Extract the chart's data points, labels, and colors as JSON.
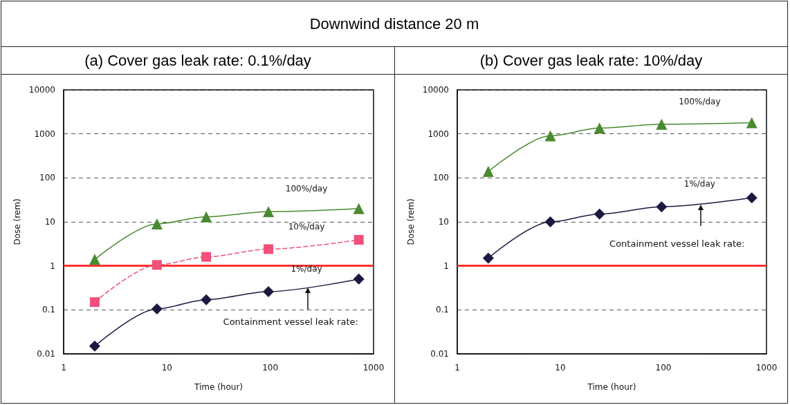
{
  "chart_data": [
    {
      "type": "line",
      "title": "Downwind distance 20 m",
      "subtitle": "(a) Cover gas leak rate: 0.1%/day",
      "xlabel": "Time (hour)",
      "ylabel": "Dose (rem)",
      "x": [
        2,
        8,
        24,
        96,
        720
      ],
      "log": "xy",
      "xlim": [
        1,
        1000
      ],
      "xticks": [
        1,
        10,
        100,
        1000
      ],
      "ylim": [
        0.01,
        10000
      ],
      "yticks": [
        0.01,
        0.1,
        1,
        10,
        100,
        1000,
        10000
      ],
      "grid": "y",
      "legend": false,
      "annotations": [
        "Containment vessel leak rate:"
      ],
      "ref_lines": [
        {
          "axis": "y",
          "value": 1,
          "color": "#ff3030",
          "line_style": "solid"
        }
      ],
      "series": [
        {
          "name": "100%/day",
          "color": "#4a8a30",
          "marker": "triangle",
          "line_style": "solid",
          "values": [
            1.4,
            9,
            13,
            17,
            20
          ]
        },
        {
          "name": "10%/day",
          "color": "#f0507a",
          "marker": "square",
          "line_style": "dashed",
          "values": [
            0.15,
            1.05,
            1.6,
            2.4,
            3.9
          ]
        },
        {
          "name": "1%/day",
          "color": "#1a1a40",
          "marker": "diamond",
          "line_style": "solid",
          "values": [
            0.015,
            0.105,
            0.17,
            0.26,
            0.5
          ]
        }
      ]
    },
    {
      "type": "line",
      "subtitle": "(b) Cover gas leak rate: 10%/day",
      "xlabel": "Time (hour)",
      "ylabel": "Dose (rem)",
      "x": [
        2,
        8,
        24,
        96,
        720
      ],
      "log": "xy",
      "xlim": [
        1,
        1000
      ],
      "xticks": [
        1,
        10,
        100,
        1000
      ],
      "ylim": [
        0.01,
        10000
      ],
      "yticks": [
        0.01,
        0.1,
        1,
        10,
        100,
        1000,
        10000
      ],
      "grid": "y",
      "legend": false,
      "annotations": [
        "Containment vessel leak rate:"
      ],
      "ref_lines": [
        {
          "axis": "y",
          "value": 1,
          "color": "#ff3030",
          "line_style": "solid"
        }
      ],
      "series": [
        {
          "name": "100%/day",
          "color": "#4a8a30",
          "marker": "triangle",
          "line_style": "solid",
          "values": [
            140,
            900,
            1350,
            1650,
            1800
          ]
        },
        {
          "name": "1%/day",
          "color": "#1a1a40",
          "marker": "diamond",
          "line_style": "solid",
          "values": [
            1.5,
            10,
            15,
            22,
            35
          ]
        }
      ]
    }
  ]
}
